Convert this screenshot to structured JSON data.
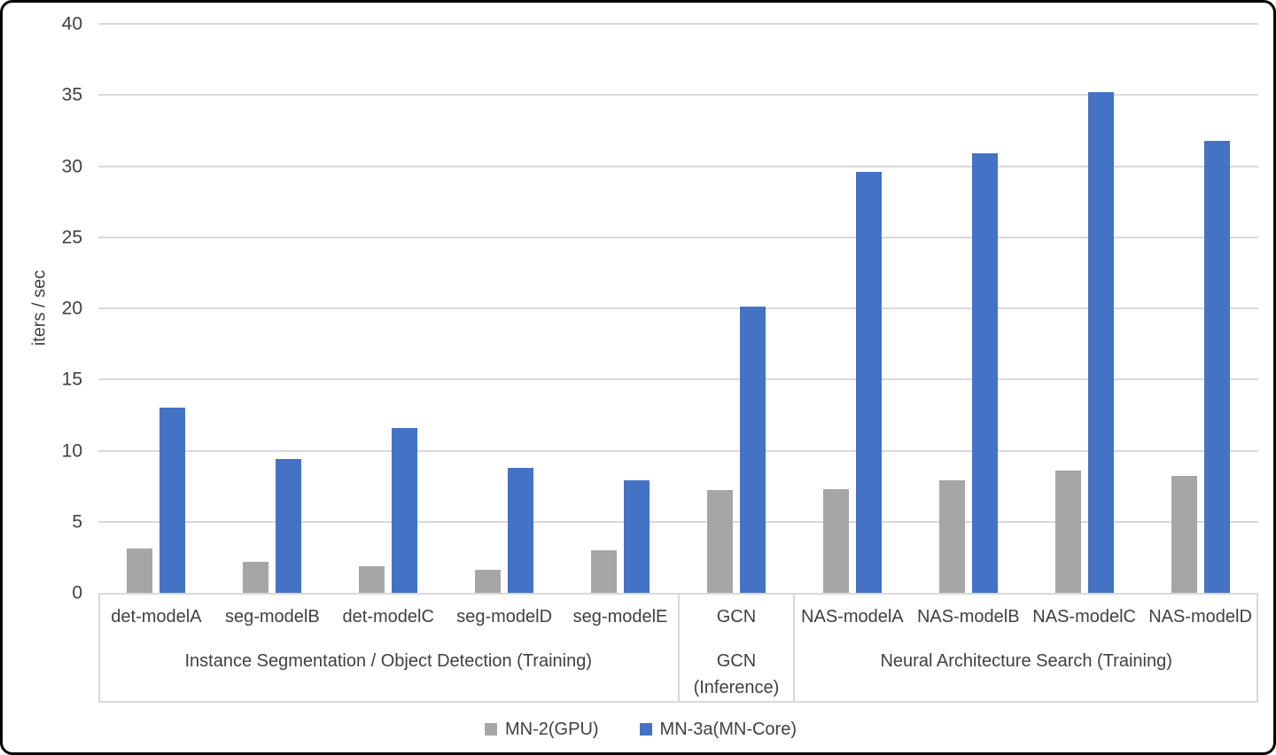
{
  "chart_data": {
    "type": "bar",
    "title": "",
    "xlabel": "",
    "ylabel": "iters / sec",
    "ylim": [
      0,
      40
    ],
    "yticks": [
      0,
      5,
      10,
      15,
      20,
      25,
      30,
      35,
      40
    ],
    "grid": true,
    "legend_position": "bottom",
    "categories": [
      "det-modelA",
      "seg-modelB",
      "det-modelC",
      "seg-modelD",
      "seg-modelE",
      "GCN",
      "NAS-modelA",
      "NAS-modelB",
      "NAS-modelC",
      "NAS-modelD"
    ],
    "series": [
      {
        "name": "MN-2(GPU)",
        "color": "#a6a6a6",
        "values": [
          3.1,
          2.2,
          1.9,
          1.6,
          3.0,
          7.2,
          7.3,
          7.9,
          8.6,
          8.2
        ]
      },
      {
        "name": "MN-3a(MN-Core)",
        "color": "#4472c4",
        "values": [
          13.0,
          9.4,
          11.6,
          8.8,
          7.9,
          20.1,
          29.6,
          30.9,
          35.2,
          31.8
        ]
      }
    ],
    "category_groups": [
      {
        "label": "Instance Segmentation / Object Detection (Training)",
        "span": 5
      },
      {
        "label": "GCN (Inference)",
        "span": 1
      },
      {
        "label": "Neural Architecture Search (Training)",
        "span": 4
      }
    ]
  },
  "colors": {
    "gridline": "#d9d9d9",
    "axis_text": "#404040",
    "frame_border": "#000000",
    "background": "#ffffff"
  }
}
